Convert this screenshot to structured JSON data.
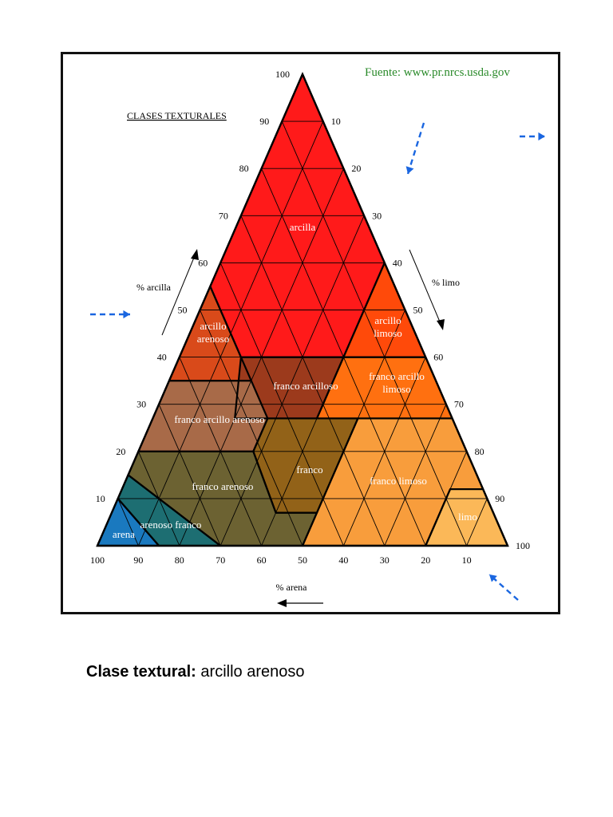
{
  "source": "Fuente: www.pr.nrcs.usda.gov",
  "title": "CLASES TEXTURALES",
  "axes": {
    "clay": {
      "label": "% arcilla",
      "ticks": [
        "10",
        "20",
        "30",
        "40",
        "50",
        "60",
        "70",
        "80",
        "90",
        "100"
      ]
    },
    "silt": {
      "label": "% limo",
      "ticks": [
        "10",
        "20",
        "30",
        "40",
        "50",
        "60",
        "70",
        "80",
        "90",
        "100"
      ]
    },
    "sand": {
      "label": "% arena",
      "ticks": [
        "100",
        "90",
        "80",
        "70",
        "60",
        "50",
        "40",
        "30",
        "20",
        "10"
      ]
    }
  },
  "classes": [
    {
      "key": "arcilla",
      "label": [
        "arcilla"
      ],
      "color": "#ff1a1a"
    },
    {
      "key": "arcillo_limoso",
      "label": [
        "arcillo",
        "limoso"
      ],
      "color": "#ff4a0a"
    },
    {
      "key": "arcillo_arenoso",
      "label": [
        "arcillo",
        "arenoso"
      ],
      "color": "#d94a1a"
    },
    {
      "key": "franco_arcillo_limoso",
      "label": [
        "franco arcillo",
        "limoso"
      ],
      "color": "#ff7010"
    },
    {
      "key": "franco_arcilloso",
      "label": [
        "franco arcilloso"
      ],
      "color": "#9c3a1c"
    },
    {
      "key": "franco_arcillo_arenoso",
      "label": [
        "franco arcillo arenoso"
      ],
      "color": "#a86a48"
    },
    {
      "key": "franco",
      "label": [
        "franco"
      ],
      "color": "#926218"
    },
    {
      "key": "franco_limoso",
      "label": [
        "franco limoso"
      ],
      "color": "#f89d3c"
    },
    {
      "key": "limo",
      "label": [
        "limo"
      ],
      "color": "#fbb858"
    },
    {
      "key": "franco_arenoso",
      "label": [
        "franco arenoso"
      ],
      "color": "#6c6232"
    },
    {
      "key": "arenoso_franco",
      "label": [
        "arenoso franco"
      ],
      "color": "#1d6e72"
    },
    {
      "key": "arena",
      "label": [
        "arena"
      ],
      "color": "#1a79bf"
    }
  ],
  "caption": {
    "label": "Clase textural:",
    "value": "arcillo arenoso"
  },
  "colors": {
    "arrow_blue": "#1a66e0",
    "source_green": "#2a8a2a",
    "grid": "#000000"
  }
}
